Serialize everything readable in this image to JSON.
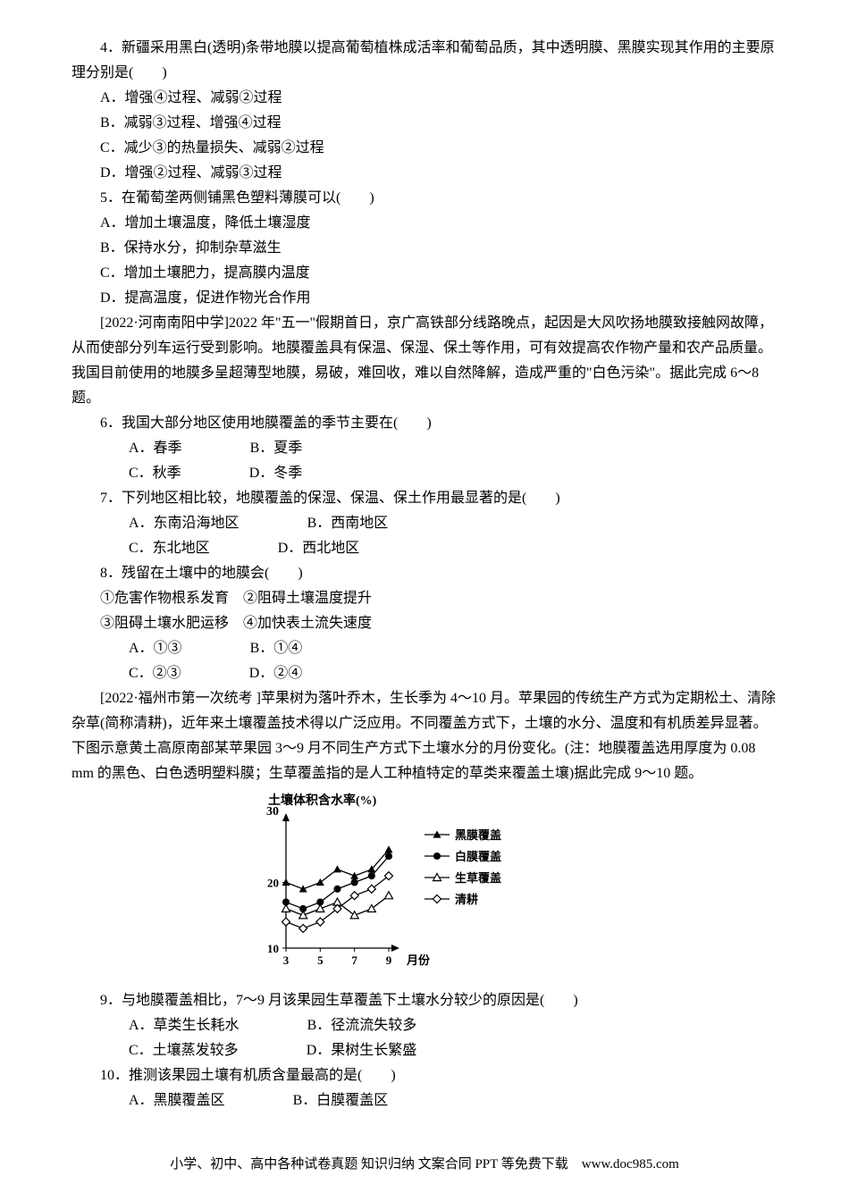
{
  "q4": {
    "stem": "4．新疆采用黑白(透明)条带地膜以提高葡萄植株成活率和葡萄品质，其中透明膜、黑膜实现其作用的主要原理分别是(　　)",
    "optA": "A．增强④过程、减弱②过程",
    "optB": "B．减弱③过程、增强④过程",
    "optC": "C．减少③的热量损失、减弱②过程",
    "optD": "D．增强②过程、减弱③过程"
  },
  "q5": {
    "stem": "5．在葡萄垄两侧铺黑色塑料薄膜可以(　　)",
    "optA": "A．增加土壤温度，降低土壤湿度",
    "optB": "B．保持水分，抑制杂草滋生",
    "optC": "C．增加土壤肥力，提高膜内温度",
    "optD": "D．提高温度，促进作物光合作用"
  },
  "passage1": "[2022·河南南阳中学]2022 年\"五一\"假期首日，京广高铁部分线路晚点，起因是大风吹扬地膜致接触网故障，从而使部分列车运行受到影响。地膜覆盖具有保温、保湿、保土等作用，可有效提高农作物产量和农产品质量。我国目前使用的地膜多呈超薄型地膜，易破，难回收，难以自然降解，造成严重的\"白色污染\"。据此完成 6～8 题。",
  "q6": {
    "stem": "6．我国大部分地区使用地膜覆盖的季节主要在(　　)",
    "optA": "A．春季",
    "optB": "B．夏季",
    "optC": "C．秋季",
    "optD": "D．冬季"
  },
  "q7": {
    "stem": "7．下列地区相比较，地膜覆盖的保湿、保温、保土作用最显著的是(　　)",
    "optA": "A．东南沿海地区",
    "optB": "B．西南地区",
    "optC": "C．东北地区",
    "optD": "D．西北地区"
  },
  "q8": {
    "stem": "8．残留在土壤中的地膜会(　　)",
    "line1": "①危害作物根系发育　②阻碍土壤温度提升",
    "line2": "③阻碍土壤水肥运移　④加快表土流失速度",
    "optA": "A．①③",
    "optB": "B．①④",
    "optC": "C．②③",
    "optD": "D．②④"
  },
  "passage2": "[2022·福州市第一次统考 ]苹果树为落叶乔木，生长季为 4～10 月。苹果园的传统生产方式为定期松土、清除杂草(简称清耕)，近年来土壤覆盖技术得以广泛应用。不同覆盖方式下，土壤的水分、温度和有机质差异显著。下图示意黄土高原南部某苹果园 3～9 月不同生产方式下土壤水分的月份变化。(注：地膜覆盖选用厚度为 0.08 mm 的黑色、白色透明塑料膜；生草覆盖指的是人工种植特定的草类来覆盖土壤)据此完成 9～10 题。",
  "chart": {
    "type": "line",
    "title": "土壤体积含水率(%)",
    "x_label": "月份",
    "x_ticks": [
      3,
      5,
      7,
      9
    ],
    "xlim": [
      3,
      9
    ],
    "y_ticks": [
      10,
      20,
      30
    ],
    "ylim": [
      10,
      30
    ],
    "title_fontsize": 14,
    "axis_fontsize": 13,
    "legend_fontsize": 13,
    "background_color": "#ffffff",
    "axis_color": "#000000",
    "series": [
      {
        "name": "黑膜覆盖",
        "marker": "triangle-filled",
        "color": "#000000",
        "values": {
          "3": 20,
          "4": 19,
          "5": 20,
          "6": 22,
          "7": 21,
          "8": 22,
          "9": 25
        }
      },
      {
        "name": "白膜覆盖",
        "marker": "circle-filled",
        "color": "#000000",
        "values": {
          "3": 17,
          "4": 16,
          "5": 17,
          "6": 19,
          "7": 20,
          "8": 21,
          "9": 24
        }
      },
      {
        "name": "生草覆盖",
        "marker": "triangle-open",
        "color": "#000000",
        "values": {
          "3": 16,
          "4": 15,
          "5": 16,
          "6": 17,
          "7": 15,
          "8": 16,
          "9": 18
        }
      },
      {
        "name": "清耕",
        "marker": "diamond-open",
        "color": "#000000",
        "values": {
          "3": 14,
          "4": 13,
          "5": 14,
          "6": 16,
          "7": 18,
          "8": 19,
          "9": 21
        }
      }
    ]
  },
  "q9": {
    "stem": "9．与地膜覆盖相比，7～9 月该果园生草覆盖下土壤水分较少的原因是(　　)",
    "optA": "A．草类生长耗水",
    "optB": "B．径流流失较多",
    "optC": "C．土壤蒸发较多",
    "optD": "D．果树生长繁盛"
  },
  "q10": {
    "stem": "10．推测该果园土壤有机质含量最高的是(　　)",
    "optA": "A．黑膜覆盖区",
    "optB": "B．白膜覆盖区"
  },
  "footer": "小学、初中、高中各种试卷真题 知识归纳 文案合同 PPT 等免费下载　www.doc985.com"
}
